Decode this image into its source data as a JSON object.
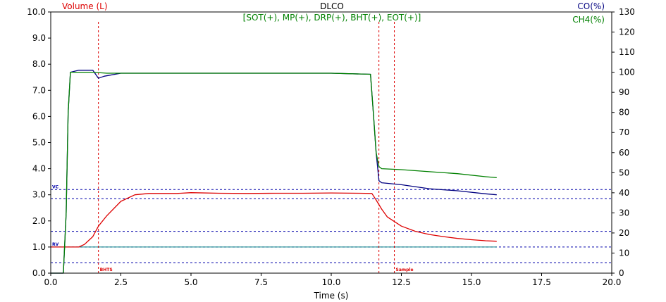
{
  "chart_data": {
    "type": "line",
    "title": "DLCO",
    "subtitle": "[SOT(+), MP(+), DRP(+), BHT(+), EOT(+)]",
    "xlabel": "Time (s)",
    "ylabel_left": "Volume (L)",
    "ylabel_right_1": "CO(%)",
    "ylabel_right_2": "CH4(%)",
    "xlim": [
      0,
      20
    ],
    "ylim_left": [
      0,
      10
    ],
    "ylim_right": [
      0,
      130
    ],
    "x_ticks": [
      "0.0",
      "2.5",
      "5.0",
      "7.5",
      "10.0",
      "12.5",
      "15.0",
      "17.5",
      "20.0"
    ],
    "y_ticks_left": [
      "0.0",
      "1.0",
      "2.0",
      "3.0",
      "4.0",
      "5.0",
      "6.0",
      "7.0",
      "8.0",
      "9.0",
      "10.0"
    ],
    "y_ticks_right": [
      "0",
      "10",
      "20",
      "30",
      "40",
      "50",
      "60",
      "70",
      "80",
      "90",
      "100",
      "110",
      "120",
      "130"
    ],
    "colors": {
      "volume": "#dd0000",
      "co": "#000080",
      "ch4": "#008000",
      "marker": "#dd0000",
      "reference": "#0000aa",
      "baseline": "#008080"
    },
    "markers": [
      {
        "x": 1.7,
        "label": "BHTS"
      },
      {
        "x": 11.7,
        "label": ""
      },
      {
        "x": 12.25,
        "label": "Sample"
      }
    ],
    "reference_lines": [
      {
        "y": 3.2,
        "label": "VC"
      },
      {
        "y": 2.85,
        "label": ""
      },
      {
        "y": 1.6,
        "label": ""
      },
      {
        "y": 1.0,
        "label": "RV"
      },
      {
        "y": 0.4,
        "label": ""
      }
    ],
    "series": [
      {
        "name": "Volume (L)",
        "axis": "left",
        "x": [
          0.0,
          1.0,
          1.2,
          1.5,
          1.7,
          2.0,
          2.5,
          3.0,
          3.5,
          4.0,
          4.5,
          5.0,
          6.0,
          7.0,
          8.0,
          9.0,
          10.0,
          11.0,
          11.45,
          11.6,
          11.8,
          12.0,
          12.5,
          13.0,
          13.5,
          14.0,
          14.5,
          15.0,
          15.5,
          15.9
        ],
        "y": [
          1.0,
          1.0,
          1.1,
          1.4,
          1.8,
          2.2,
          2.75,
          3.0,
          3.05,
          3.05,
          3.05,
          3.08,
          3.06,
          3.05,
          3.06,
          3.06,
          3.07,
          3.06,
          3.05,
          2.8,
          2.45,
          2.15,
          1.8,
          1.6,
          1.48,
          1.4,
          1.33,
          1.28,
          1.24,
          1.22
        ]
      },
      {
        "name": "CO(%)",
        "axis": "right",
        "x": [
          0.0,
          0.45,
          0.55,
          0.62,
          0.7,
          1.0,
          1.5,
          1.7,
          1.9,
          2.5,
          3.5,
          5.0,
          7.5,
          10.0,
          11.4,
          11.5,
          11.6,
          11.7,
          11.8,
          12.5,
          13.5,
          14.5,
          15.5,
          15.9
        ],
        "y": [
          0,
          0,
          30,
          80,
          100,
          101,
          101,
          97,
          98,
          99.5,
          99.5,
          99.5,
          99.5,
          99.5,
          99,
          80,
          60,
          46,
          45,
          44,
          42,
          41,
          39.5,
          39
        ]
      },
      {
        "name": "CH4(%)",
        "axis": "right",
        "x": [
          0.0,
          0.45,
          0.55,
          0.62,
          0.7,
          1.0,
          1.5,
          2.0,
          3.0,
          5.0,
          7.5,
          10.0,
          11.4,
          11.5,
          11.6,
          11.7,
          11.8,
          12.5,
          13.5,
          14.5,
          15.5,
          15.9
        ],
        "y": [
          0,
          0,
          30,
          80,
          100,
          100,
          100,
          99.5,
          99.5,
          99.5,
          99.5,
          99.5,
          99,
          80,
          60,
          53,
          52,
          51.5,
          50.5,
          49.5,
          48,
          47.5
        ]
      }
    ]
  }
}
